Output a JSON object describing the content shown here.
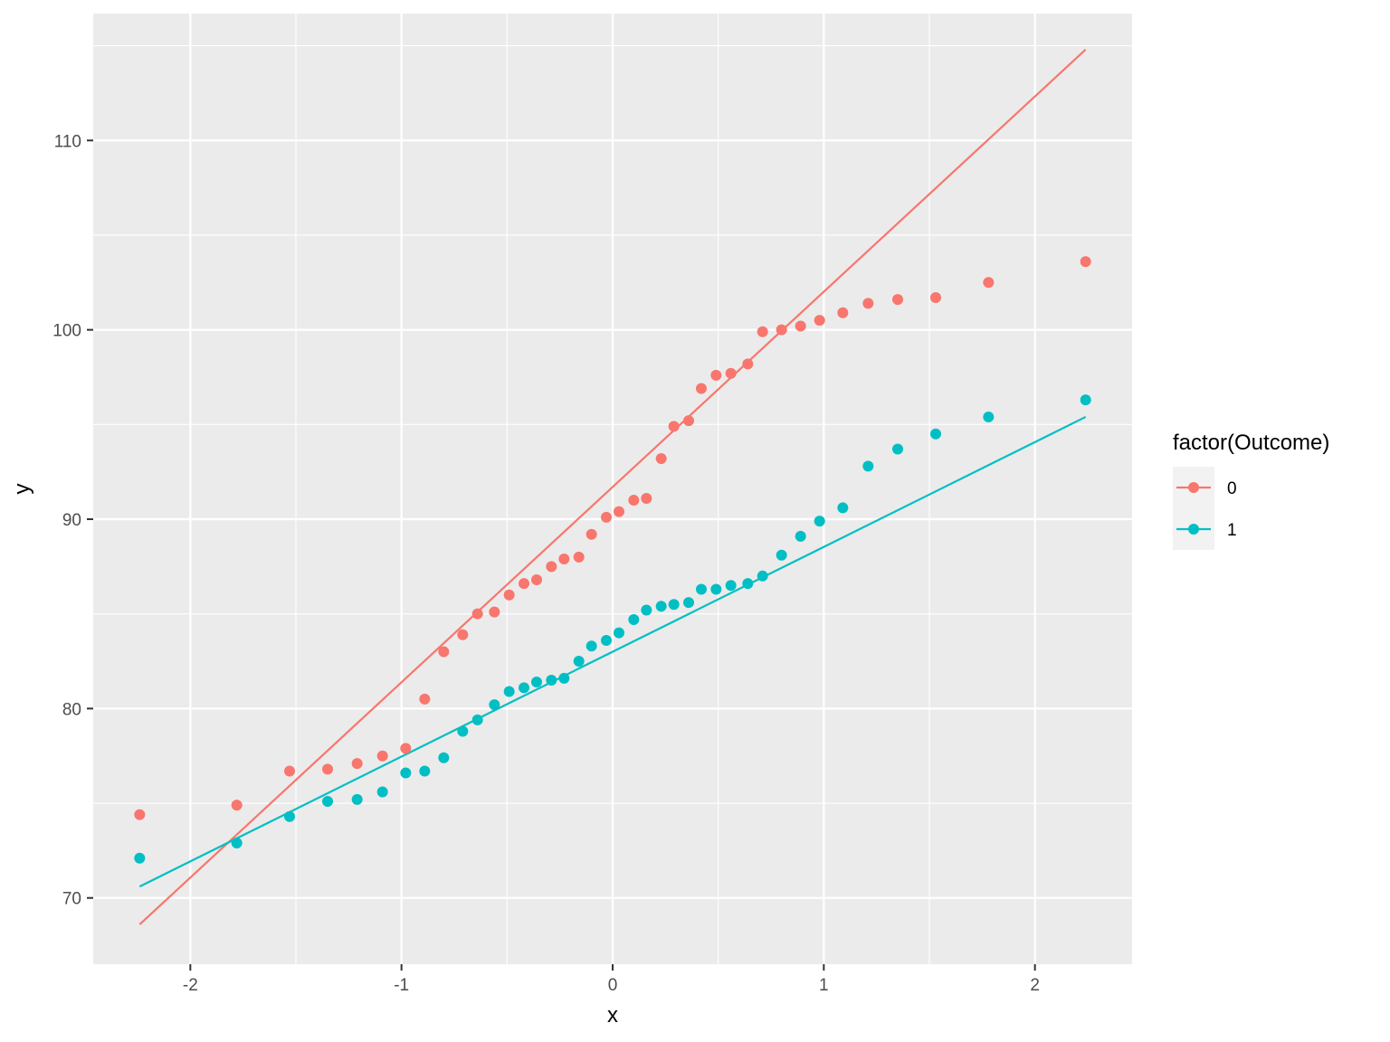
{
  "chart_data": {
    "type": "scatter",
    "title": "",
    "xlabel": "x",
    "ylabel": "y",
    "xlim": [
      -2.46,
      2.46
    ],
    "ylim": [
      66.5,
      116.7
    ],
    "x_ticks": [
      -2,
      -1,
      0,
      1,
      2
    ],
    "x_tick_labels": [
      "-2",
      "-1",
      "0",
      "1",
      "2"
    ],
    "y_ticks": [
      70,
      80,
      90,
      100,
      110
    ],
    "y_tick_labels": [
      "70",
      "80",
      "90",
      "100",
      "110"
    ],
    "grid": true,
    "legend": {
      "title": "factor(Outcome)",
      "placement": "right",
      "entries": [
        "0",
        "1"
      ]
    },
    "series": [
      {
        "name": "0",
        "color": "#F8766D",
        "points": [
          [
            -2.24,
            74.4
          ],
          [
            -1.78,
            74.9
          ],
          [
            -1.53,
            76.7
          ],
          [
            -1.35,
            76.8
          ],
          [
            -1.21,
            77.1
          ],
          [
            -1.09,
            77.5
          ],
          [
            -0.98,
            77.9
          ],
          [
            -0.89,
            80.5
          ],
          [
            -0.8,
            83.0
          ],
          [
            -0.71,
            83.9
          ],
          [
            -0.64,
            85.0
          ],
          [
            -0.56,
            85.1
          ],
          [
            -0.49,
            86.0
          ],
          [
            -0.42,
            86.6
          ],
          [
            -0.36,
            86.8
          ],
          [
            -0.29,
            87.5
          ],
          [
            -0.23,
            87.9
          ],
          [
            -0.16,
            88.0
          ],
          [
            -0.1,
            89.2
          ],
          [
            -0.03,
            90.1
          ],
          [
            0.03,
            90.4
          ],
          [
            0.1,
            91.0
          ],
          [
            0.16,
            91.1
          ],
          [
            0.23,
            93.2
          ],
          [
            0.29,
            94.9
          ],
          [
            0.36,
            95.2
          ],
          [
            0.42,
            96.9
          ],
          [
            0.49,
            97.6
          ],
          [
            0.56,
            97.7
          ],
          [
            0.64,
            98.2
          ],
          [
            0.71,
            99.9
          ],
          [
            0.8,
            100.0
          ],
          [
            0.89,
            100.2
          ],
          [
            0.98,
            100.5
          ],
          [
            1.09,
            100.9
          ],
          [
            1.21,
            101.4
          ],
          [
            1.35,
            101.6
          ],
          [
            1.53,
            101.7
          ],
          [
            1.78,
            102.5
          ],
          [
            2.24,
            103.6
          ]
        ],
        "fit_line": [
          [
            -2.24,
            68.6
          ],
          [
            2.24,
            114.8
          ]
        ]
      },
      {
        "name": "1",
        "color": "#00BFC4",
        "points": [
          [
            -2.24,
            72.1
          ],
          [
            -1.78,
            72.9
          ],
          [
            -1.53,
            74.3
          ],
          [
            -1.35,
            75.1
          ],
          [
            -1.21,
            75.2
          ],
          [
            -1.09,
            75.6
          ],
          [
            -0.98,
            76.6
          ],
          [
            -0.89,
            76.7
          ],
          [
            -0.8,
            77.4
          ],
          [
            -0.71,
            78.8
          ],
          [
            -0.64,
            79.4
          ],
          [
            -0.56,
            80.2
          ],
          [
            -0.49,
            80.9
          ],
          [
            -0.42,
            81.1
          ],
          [
            -0.36,
            81.4
          ],
          [
            -0.29,
            81.5
          ],
          [
            -0.23,
            81.6
          ],
          [
            -0.16,
            82.5
          ],
          [
            -0.1,
            83.3
          ],
          [
            -0.03,
            83.6
          ],
          [
            0.03,
            84.0
          ],
          [
            0.1,
            84.7
          ],
          [
            0.16,
            85.2
          ],
          [
            0.23,
            85.4
          ],
          [
            0.29,
            85.5
          ],
          [
            0.36,
            85.6
          ],
          [
            0.42,
            86.3
          ],
          [
            0.49,
            86.3
          ],
          [
            0.56,
            86.5
          ],
          [
            0.64,
            86.6
          ],
          [
            0.71,
            87.0
          ],
          [
            0.8,
            88.1
          ],
          [
            0.89,
            89.1
          ],
          [
            0.98,
            89.9
          ],
          [
            1.09,
            90.6
          ],
          [
            1.21,
            92.8
          ],
          [
            1.35,
            93.7
          ],
          [
            1.53,
            94.5
          ],
          [
            1.78,
            95.4
          ],
          [
            2.24,
            96.3
          ]
        ],
        "fit_line": [
          [
            -2.24,
            70.6
          ],
          [
            2.24,
            95.4
          ]
        ]
      }
    ],
    "colors": {
      "panel_background": "#EBEBEB",
      "grid_major": "#FFFFFF",
      "legend_key_background": "#F2F2F2",
      "axis_tick": "#333333"
    }
  }
}
